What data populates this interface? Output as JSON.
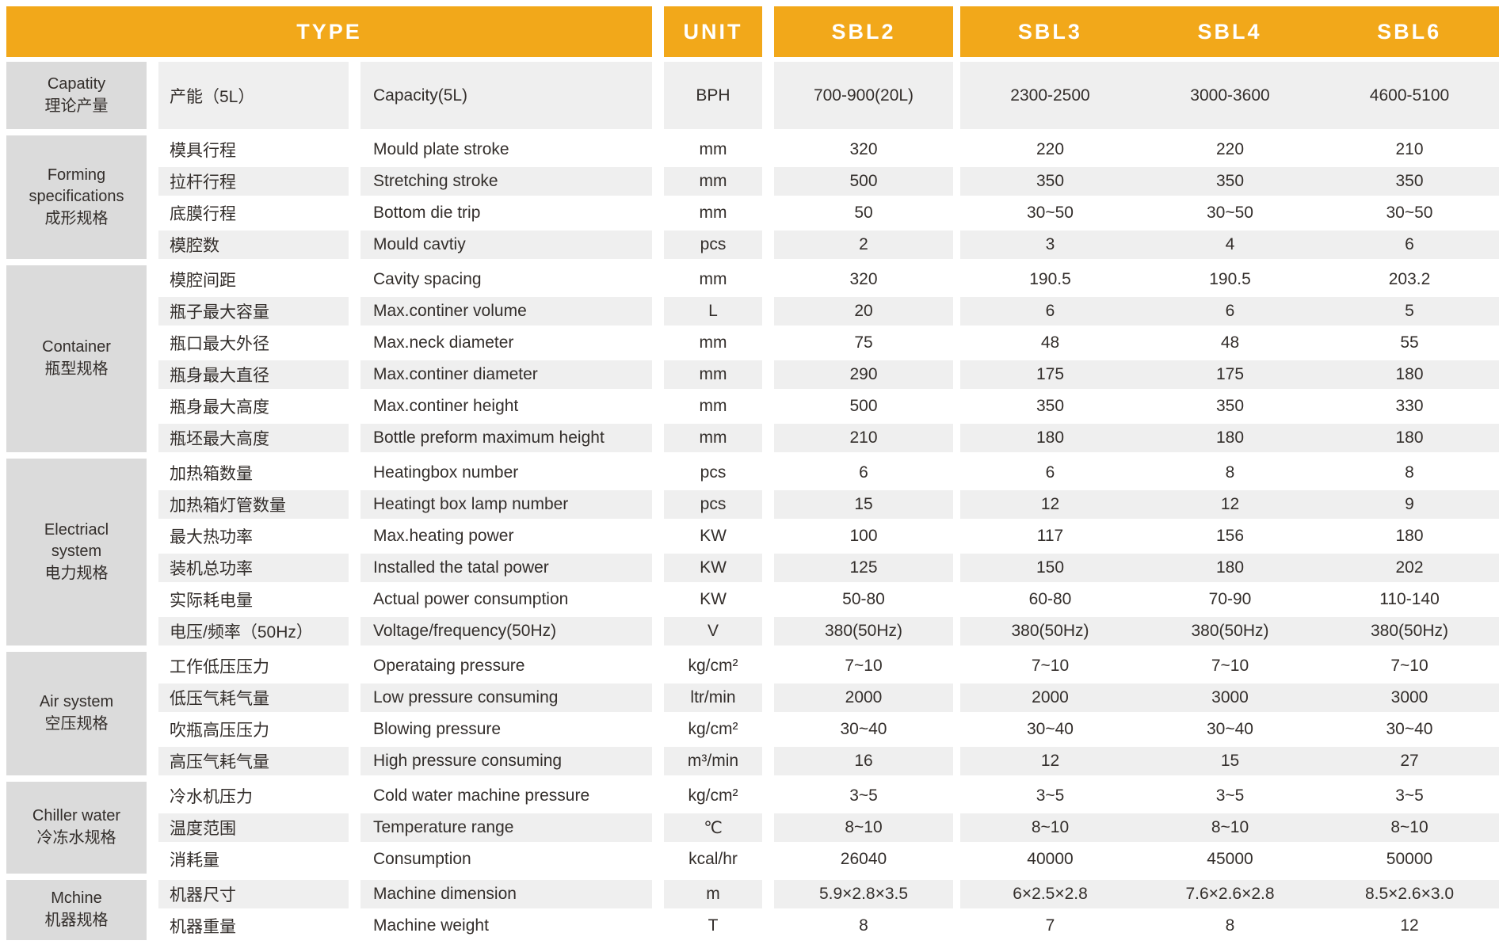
{
  "header": {
    "type_label": "TYPE",
    "unit_label": "UNIT",
    "models": [
      "SBL2",
      "SBL3",
      "SBL4",
      "SBL6"
    ]
  },
  "colors": {
    "header_bg": "#F2A81A",
    "group_bg": "#DBDBDB",
    "stripe_bg": "#EFEFEF",
    "text": "#332E2B",
    "header_text": "#FFFFFF"
  },
  "groups": [
    {
      "en": "Capatity",
      "cn": "理论产量"
    },
    {
      "en": "Forming specifications",
      "cn": "成形规格"
    },
    {
      "en": "Container",
      "cn": "瓶型规格"
    },
    {
      "en": "Electriacl system",
      "cn": "电力规格"
    },
    {
      "en": "Air system",
      "cn": "空压规格"
    },
    {
      "en": "Chiller water",
      "cn": "冷冻水规格"
    },
    {
      "en": "Mchine",
      "cn": "机器规格"
    }
  ],
  "rows": [
    {
      "cn": "产能（5L）",
      "en": "Capacity(5L)",
      "unit": "BPH",
      "values": [
        "700-900(20L)",
        "2300-2500",
        "3000-3600",
        "4600-5100"
      ]
    },
    {
      "cn": "模具行程",
      "en": "Mould plate stroke",
      "unit": "mm",
      "values": [
        "320",
        "220",
        "220",
        "210"
      ]
    },
    {
      "cn": "拉杆行程",
      "en": "Stretching stroke",
      "unit": "mm",
      "values": [
        "500",
        "350",
        "350",
        "350"
      ]
    },
    {
      "cn": "底膜行程",
      "en": "Bottom die trip",
      "unit": "mm",
      "values": [
        "50",
        "30~50",
        "30~50",
        "30~50"
      ]
    },
    {
      "cn": "模腔数",
      "en": "Mould cavtiy",
      "unit": "pcs",
      "values": [
        "2",
        "3",
        "4",
        "6"
      ]
    },
    {
      "cn": "模腔间距",
      "en": "Cavity spacing",
      "unit": "mm",
      "values": [
        "320",
        "190.5",
        "190.5",
        "203.2"
      ]
    },
    {
      "cn": "瓶子最大容量",
      "en": "Max.continer volume",
      "unit": "L",
      "values": [
        "20",
        "6",
        "6",
        "5"
      ]
    },
    {
      "cn": "瓶口最大外径",
      "en": "Max.neck diameter",
      "unit": "mm",
      "values": [
        "75",
        "48",
        "48",
        "55"
      ]
    },
    {
      "cn": "瓶身最大直径",
      "en": "Max.continer diameter",
      "unit": "mm",
      "values": [
        "290",
        "175",
        "175",
        "180"
      ]
    },
    {
      "cn": "瓶身最大高度",
      "en": "Max.continer height",
      "unit": "mm",
      "values": [
        "500",
        "350",
        "350",
        "330"
      ]
    },
    {
      "cn": "瓶坯最大高度",
      "en": "Bottle preform maximum height",
      "unit": "mm",
      "values": [
        "210",
        "180",
        "180",
        "180"
      ]
    },
    {
      "cn": "加热箱数量",
      "en": "Heatingbox number",
      "unit": "pcs",
      "values": [
        "6",
        "6",
        "8",
        "8"
      ]
    },
    {
      "cn": "加热箱灯管数量",
      "en": "Heatingt box lamp number",
      "unit": "pcs",
      "values": [
        "15",
        "12",
        "12",
        "9"
      ]
    },
    {
      "cn": "最大热功率",
      "en": "Max.heating power",
      "unit": "KW",
      "values": [
        "100",
        "117",
        "156",
        "180"
      ]
    },
    {
      "cn": "装机总功率",
      "en": "Installed the tatal power",
      "unit": "KW",
      "values": [
        "125",
        "150",
        "180",
        "202"
      ]
    },
    {
      "cn": "实际耗电量",
      "en": "Actual power consumption",
      "unit": "KW",
      "values": [
        "50-80",
        "60-80",
        "70-90",
        "110-140"
      ]
    },
    {
      "cn": "电压/频率（50Hz）",
      "en": "Voltage/frequency(50Hz)",
      "unit": "V",
      "values": [
        "380(50Hz)",
        "380(50Hz)",
        "380(50Hz)",
        "380(50Hz)"
      ]
    },
    {
      "cn": "工作低压压力",
      "en": "Operataing pressure",
      "unit": "kg/cm²",
      "values": [
        "7~10",
        "7~10",
        "7~10",
        "7~10"
      ]
    },
    {
      "cn": "低压气耗气量",
      "en": "Low pressure consuming",
      "unit": "ltr/min",
      "values": [
        "2000",
        "2000",
        "3000",
        "3000"
      ]
    },
    {
      "cn": "吹瓶高压压力",
      "en": "Blowing pressure",
      "unit": "kg/cm²",
      "values": [
        "30~40",
        "30~40",
        "30~40",
        "30~40"
      ]
    },
    {
      "cn": "高压气耗气量",
      "en": "High pressure consuming",
      "unit": "m³/min",
      "values": [
        "16",
        "12",
        "15",
        "27"
      ]
    },
    {
      "cn": "冷水机压力",
      "en": "Cold water machine pressure",
      "unit": "kg/cm²",
      "values": [
        "3~5",
        "3~5",
        "3~5",
        "3~5"
      ]
    },
    {
      "cn": "温度范围",
      "en": "Temperature range",
      "unit": "℃",
      "values": [
        "8~10",
        "8~10",
        "8~10",
        "8~10"
      ]
    },
    {
      "cn": "消耗量",
      "en": "Consumption",
      "unit": "kcal/hr",
      "values": [
        "26040",
        "40000",
        "45000",
        "50000"
      ]
    },
    {
      "cn": "机器尺寸",
      "en": "Machine dimension",
      "unit": "m",
      "values": [
        "5.9×2.8×3.5",
        "6×2.5×2.8",
        "7.6×2.6×2.8",
        "8.5×2.6×3.0"
      ]
    },
    {
      "cn": "机器重量",
      "en": "Machine weight",
      "unit": "T",
      "values": [
        "8",
        "7",
        "8",
        "12"
      ]
    }
  ]
}
